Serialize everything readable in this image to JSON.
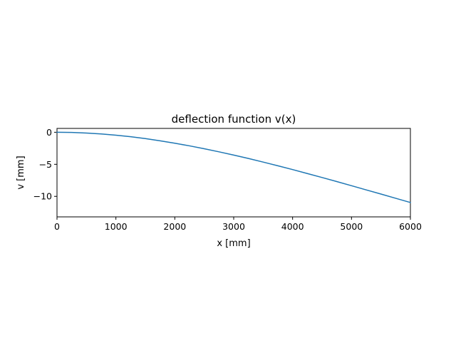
{
  "chart_data": {
    "type": "line",
    "title": "deflection function v(x)",
    "xlabel": "x [mm]",
    "ylabel": "v [mm]",
    "xlim": [
      0,
      6000
    ],
    "ylim": [
      -13.2,
      0.6
    ],
    "xticks": [
      0,
      1000,
      2000,
      3000,
      4000,
      5000,
      6000
    ],
    "xtick_labels": [
      "0",
      "1000",
      "2000",
      "3000",
      "4000",
      "5000",
      "6000"
    ],
    "yticks": [
      0,
      -5,
      -10
    ],
    "ytick_labels": [
      "0",
      "−5",
      "−10"
    ],
    "grid": false,
    "series": [
      {
        "color": "#1f77b4",
        "x": [
          0,
          250,
          500,
          750,
          1000,
          1250,
          1500,
          1750,
          2000,
          2250,
          2500,
          2750,
          3000,
          3250,
          3500,
          3750,
          4000,
          4250,
          4500,
          4750,
          5000,
          5250,
          5500,
          5750,
          6000
        ],
        "y": [
          0,
          -0.03,
          -0.12,
          -0.26,
          -0.46,
          -0.7,
          -0.99,
          -1.33,
          -1.71,
          -2.12,
          -2.57,
          -3.05,
          -3.56,
          -4.09,
          -4.65,
          -5.23,
          -5.82,
          -6.44,
          -7.06,
          -7.69,
          -8.34,
          -8.99,
          -9.64,
          -10.3,
          -10.96
        ]
      }
    ]
  }
}
